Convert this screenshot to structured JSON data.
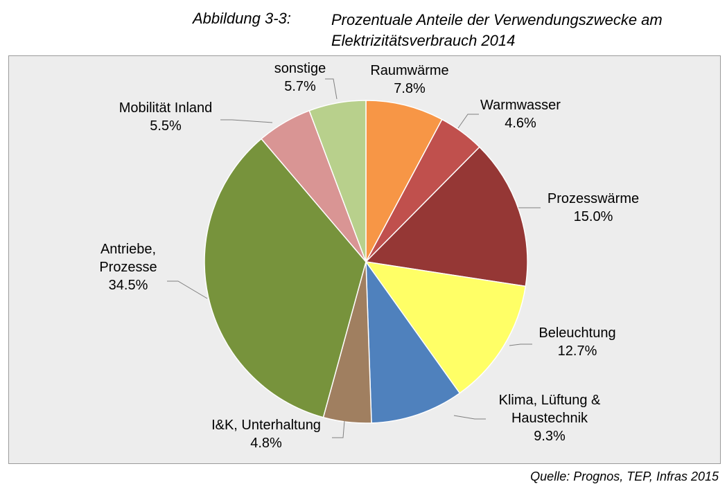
{
  "caption": {
    "label": "Abbildung 3-3:",
    "title_line1": "Prozentuale Anteile der Verwendungszwecke am",
    "title_line2": "Elektrizitätsverbrauch 2014"
  },
  "source": "Quelle: Prognos, TEP, Infras 2015",
  "chart_data": {
    "type": "pie",
    "slices": [
      {
        "label": [
          "Raumwärme"
        ],
        "value": 7.8,
        "value_label": "7.8%",
        "color": "#f79646"
      },
      {
        "label": [
          "Warmwasser"
        ],
        "value": 4.6,
        "value_label": "4.6%",
        "color": "#c0504d"
      },
      {
        "label": [
          "Prozesswärme"
        ],
        "value": 15.0,
        "value_label": "15.0%",
        "color": "#953735"
      },
      {
        "label": [
          "Beleuchtung"
        ],
        "value": 12.7,
        "value_label": "12.7%",
        "color": "#ffff66"
      },
      {
        "label": [
          "Klima, Lüftung &",
          "Haustechnik"
        ],
        "value": 9.3,
        "value_label": "9.3%",
        "color": "#4f81bd"
      },
      {
        "label": [
          "I&K, Unterhaltung"
        ],
        "value": 4.8,
        "value_label": "4.8%",
        "color": "#a07f60"
      },
      {
        "label": [
          "Antriebe,",
          "Prozesse"
        ],
        "value": 34.5,
        "value_label": "34.5%",
        "color": "#77933c"
      },
      {
        "label": [
          "Mobilität Inland"
        ],
        "value": 5.5,
        "value_label": "5.5%",
        "color": "#d99594"
      },
      {
        "label": [
          "sonstige"
        ],
        "value": 5.7,
        "value_label": "5.7%",
        "color": "#b8d08c"
      }
    ],
    "start_angle": "12 o'clock",
    "direction": "clockwise",
    "legend": "none"
  }
}
